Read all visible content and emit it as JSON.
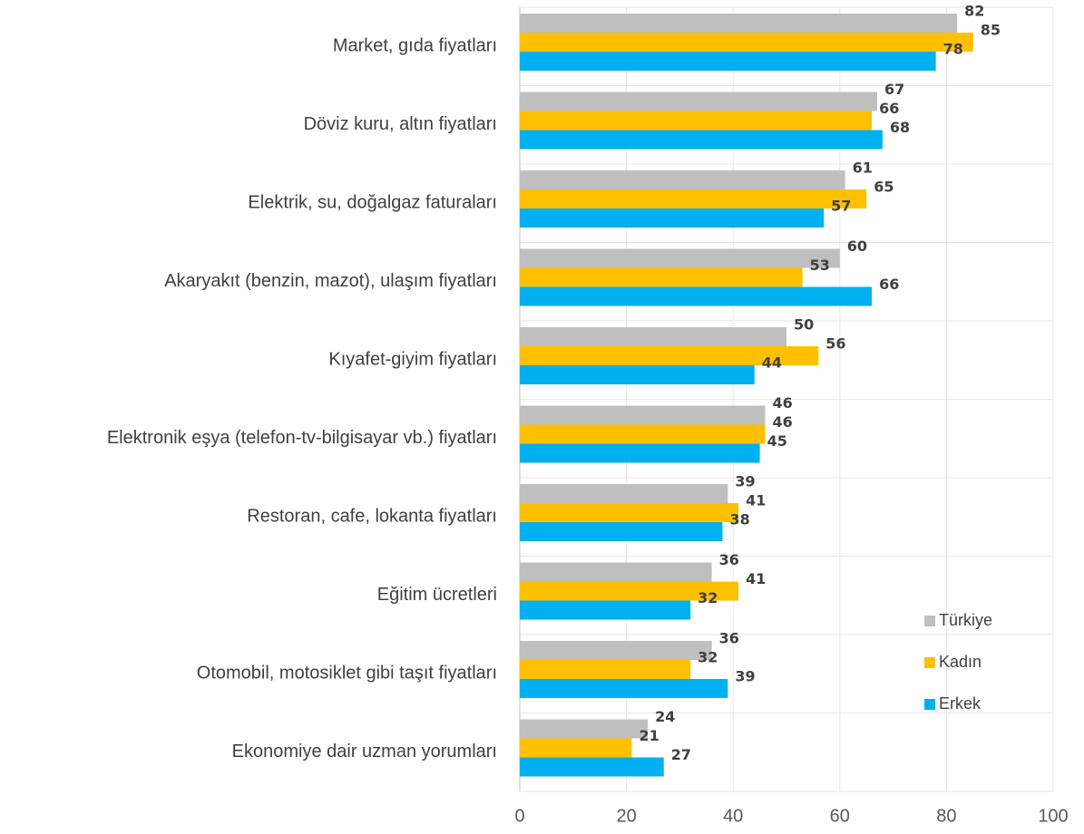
{
  "chart_data": {
    "type": "bar",
    "orientation": "horizontal",
    "categories": [
      "Market, gıda fiyatları",
      "Döviz kuru, altın fiyatları",
      "Elektrik, su, doğalgaz faturaları",
      "Akaryakıt (benzin, mazot), ulaşım fiyatları",
      "Kıyafet-giyim fiyatları",
      "Elektronik eşya (telefon-tv-bilgisayar vb.) fiyatları",
      "Restoran, cafe, lokanta fiyatları",
      "Eğitim ücretleri",
      "Otomobil, motosiklet gibi taşıt fiyatları",
      "Ekonomiye dair uzman yorumları"
    ],
    "series": [
      {
        "name": "Türkiye",
        "color": "#bfbfbf",
        "values": [
          82,
          67,
          61,
          60,
          50,
          46,
          39,
          36,
          36,
          24
        ]
      },
      {
        "name": "Kadın",
        "color": "#ffc000",
        "values": [
          85,
          66,
          65,
          53,
          56,
          46,
          41,
          41,
          32,
          21
        ]
      },
      {
        "name": "Erkek",
        "color": "#00b0f0",
        "values": [
          78,
          68,
          57,
          66,
          44,
          45,
          38,
          32,
          39,
          27
        ]
      }
    ],
    "xlim": [
      0,
      100
    ],
    "xticks": [
      0,
      20,
      40,
      60,
      80,
      100
    ],
    "grid": true,
    "legend": "lower right"
  }
}
